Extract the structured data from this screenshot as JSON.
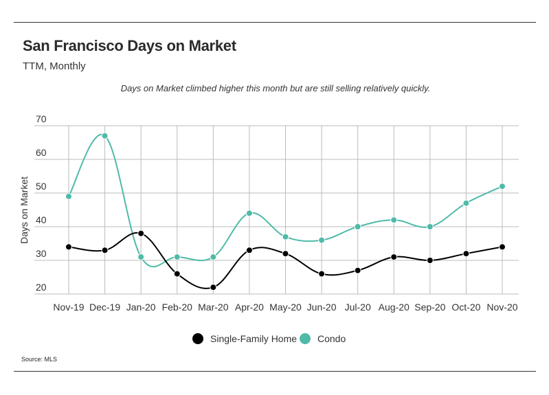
{
  "header": {
    "title": "San Francisco Days on Market",
    "subtitle": "TTM, Monthly"
  },
  "annotation": "Days on Market climbed higher this month but are still selling relatively quickly.",
  "source": "Source:  MLS",
  "colors": {
    "single_family": "#000000",
    "condo": "#4fbaa8",
    "grid": "#bbbbbb"
  },
  "chart_data": {
    "type": "line",
    "title": "San Francisco Days on Market",
    "subtitle": "TTM, Monthly",
    "xlabel": "",
    "ylabel": "Days on Market",
    "categories": [
      "Nov-19",
      "Dec-19",
      "Jan-20",
      "Feb-20",
      "Mar-20",
      "Apr-20",
      "May-20",
      "Jun-20",
      "Jul-20",
      "Aug-20",
      "Sep-20",
      "Oct-20",
      "Nov-20"
    ],
    "ylim": [
      20,
      70
    ],
    "yticks": [
      20,
      30,
      40,
      50,
      60,
      70
    ],
    "grid": true,
    "legend_position": "bottom-center",
    "series": [
      {
        "name": "Single-Family Home",
        "color": "#000000",
        "values": [
          34,
          33,
          38,
          26,
          22,
          33,
          32,
          26,
          27,
          31,
          30,
          32,
          34
        ]
      },
      {
        "name": "Condo",
        "color": "#4fbaa8",
        "values": [
          49,
          67,
          31,
          31,
          31,
          44,
          37,
          36,
          40,
          42,
          40,
          47,
          52
        ]
      }
    ]
  }
}
